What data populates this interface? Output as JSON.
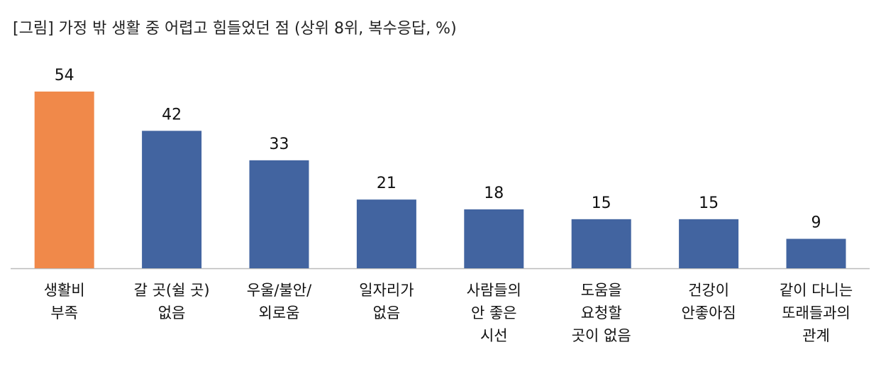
{
  "chart_data": {
    "type": "bar",
    "title": "[그림] 가정 밖 생활 중 어렵고 힘들었던 점 (상위 8위, 복수응답, %)",
    "categories": [
      "생활비\n부족",
      "갈 곳(쉴 곳)\n없음",
      "우울/불안/\n외로움",
      "일자리가\n없음",
      "사람들의\n안 좋은\n시선",
      "도움을\n요청할\n곳이 없음",
      "건강이\n안좋아짐",
      "같이 다니는\n또래들과의\n관계"
    ],
    "values": [
      54,
      42,
      33,
      21,
      18,
      15,
      15,
      9
    ],
    "colors": [
      "#f0894a",
      "#4264a0",
      "#4264a0",
      "#4264a0",
      "#4264a0",
      "#4264a0",
      "#4264a0",
      "#4264a0"
    ]
  }
}
